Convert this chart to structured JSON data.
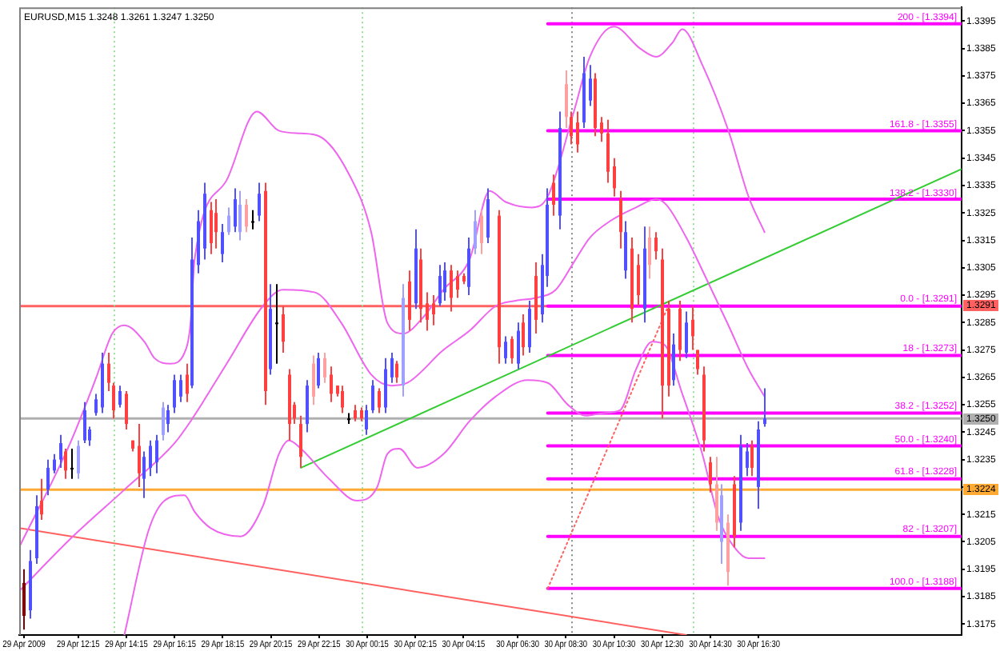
{
  "chart_data": {
    "type": "candlestick",
    "title": "EURUSD,M15 1.3248 1.3261 1.3247 1.3250",
    "x": [
      "2009-04-29T10:00",
      "2009-04-29T10:15",
      "2009-04-29T10:30",
      "2009-04-29T10:45",
      "2009-04-29T11:00",
      "2009-04-29T11:15",
      "2009-04-29T11:30",
      "2009-04-29T11:45",
      "2009-04-29T12:00",
      "2009-04-29T12:15",
      "2009-04-29T12:30",
      "2009-04-29T12:45",
      "2009-04-29T13:00",
      "2009-04-29T13:15",
      "2009-04-29T13:30",
      "2009-04-29T13:45",
      "2009-04-29T14:00",
      "2009-04-29T14:15",
      "2009-04-29T14:30",
      "2009-04-29T14:45",
      "2009-04-29T15:00",
      "2009-04-29T15:15",
      "2009-04-29T15:30",
      "2009-04-29T15:45",
      "2009-04-29T16:00",
      "2009-04-29T16:15",
      "2009-04-29T16:30",
      "2009-04-29T16:45",
      "2009-04-29T17:00",
      "2009-04-29T17:15",
      "2009-04-29T17:30",
      "2009-04-29T17:45",
      "2009-04-29T18:00",
      "2009-04-29T18:15",
      "2009-04-29T18:30",
      "2009-04-29T18:45",
      "2009-04-29T19:00",
      "2009-04-29T19:15",
      "2009-04-29T19:30",
      "2009-04-29T19:45",
      "2009-04-29T20:00",
      "2009-04-29T20:15",
      "2009-04-29T20:30",
      "2009-04-29T20:45",
      "2009-04-29T21:00",
      "2009-04-29T21:15",
      "2009-04-29T21:30",
      "2009-04-29T21:45",
      "2009-04-29T22:00",
      "2009-04-29T22:15",
      "2009-04-29T22:30",
      "2009-04-29T22:45",
      "2009-04-29T23:00",
      "2009-04-29T23:15",
      "2009-04-29T23:30",
      "2009-04-29T23:45",
      "2009-04-30T00:00",
      "2009-04-30T00:15",
      "2009-04-30T00:30",
      "2009-04-30T00:45",
      "2009-04-30T01:00",
      "2009-04-30T01:15",
      "2009-04-30T01:30",
      "2009-04-30T01:45",
      "2009-04-30T02:00",
      "2009-04-30T02:15",
      "2009-04-30T02:30",
      "2009-04-30T02:45",
      "2009-04-30T03:00",
      "2009-04-30T03:15",
      "2009-04-30T03:30",
      "2009-04-30T03:45",
      "2009-04-30T04:00",
      "2009-04-30T04:15",
      "2009-04-30T04:30",
      "2009-04-30T04:45",
      "2009-04-30T05:00",
      "2009-04-30T05:15",
      "2009-04-30T05:45",
      "2009-04-30T06:00",
      "2009-04-30T06:15",
      "2009-04-30T06:30",
      "2009-04-30T06:45",
      "2009-04-30T07:00",
      "2009-04-30T07:15",
      "2009-04-30T07:30",
      "2009-04-30T07:45",
      "2009-04-30T08:00",
      "2009-04-30T08:15",
      "2009-04-30T08:30",
      "2009-04-30T08:45",
      "2009-04-30T09:00",
      "2009-04-30T09:15",
      "2009-04-30T09:30",
      "2009-04-30T09:45",
      "2009-04-30T10:00",
      "2009-04-30T10:15",
      "2009-04-30T10:30",
      "2009-04-30T10:45",
      "2009-04-30T11:00",
      "2009-04-30T11:15",
      "2009-04-30T11:30",
      "2009-04-30T11:45",
      "2009-04-30T12:00",
      "2009-04-30T12:15",
      "2009-04-30T12:30",
      "2009-04-30T12:45",
      "2009-04-30T13:00",
      "2009-04-30T13:15",
      "2009-04-30T13:30",
      "2009-04-30T13:45",
      "2009-04-30T14:00",
      "2009-04-30T14:15",
      "2009-04-30T14:30",
      "2009-04-30T14:45",
      "2009-04-30T15:00",
      "2009-04-30T15:15",
      "2009-04-30T15:30",
      "2009-04-30T15:45",
      "2009-04-30T16:00",
      "2009-04-30T16:15",
      "2009-04-30T16:30",
      "2009-04-30T16:45"
    ],
    "ohlc": [
      [
        1.319,
        1.3195,
        1.3173,
        1.3178
      ],
      [
        1.318,
        1.3202,
        1.3177,
        1.3198
      ],
      [
        1.3199,
        1.3222,
        1.3197,
        1.3218
      ],
      [
        1.322,
        1.3228,
        1.3213,
        1.3215
      ],
      [
        1.3224,
        1.3235,
        1.3222,
        1.3232
      ],
      [
        1.3231,
        1.3237,
        1.323,
        1.3235
      ],
      [
        1.3235,
        1.3244,
        1.3232,
        1.3241
      ],
      [
        1.3238,
        1.3239,
        1.3228,
        1.3231
      ],
      [
        1.3232,
        1.3239,
        1.3228,
        1.3232
      ],
      [
        1.323,
        1.3242,
        1.3228,
        1.324
      ],
      [
        1.3242,
        1.3256,
        1.3241,
        1.3253
      ],
      [
        1.3242,
        1.3247,
        1.324,
        1.3246
      ],
      [
        1.3252,
        1.3259,
        1.3251,
        1.3257
      ],
      [
        1.3254,
        1.3274,
        1.3252,
        1.327
      ],
      [
        1.327,
        1.3274,
        1.326,
        1.3263
      ],
      [
        1.3262,
        1.3263,
        1.325,
        1.3253
      ],
      [
        1.3255,
        1.3262,
        1.3254,
        1.326
      ],
      [
        1.3259,
        1.326,
        1.3246,
        1.3248
      ],
      [
        1.3242,
        1.3242,
        1.3238,
        1.3239
      ],
      [
        1.324,
        1.3248,
        1.3225,
        1.323
      ],
      [
        1.3228,
        1.3238,
        1.3221,
        1.3236
      ],
      [
        1.3232,
        1.3242,
        1.3229,
        1.324
      ],
      [
        1.3234,
        1.3244,
        1.323,
        1.3242
      ],
      [
        1.3244,
        1.3256,
        1.3242,
        1.3254
      ],
      [
        1.3248,
        1.3255,
        1.3245,
        1.3253
      ],
      [
        1.3254,
        1.3266,
        1.3252,
        1.3264
      ],
      [
        1.3258,
        1.3266,
        1.3256,
        1.3264
      ],
      [
        1.3266,
        1.327,
        1.3256,
        1.3259
      ],
      [
        1.3262,
        1.3316,
        1.3261,
        1.3308
      ],
      [
        1.3306,
        1.3326,
        1.3303,
        1.3322
      ],
      [
        1.3312,
        1.3336,
        1.3308,
        1.3332
      ],
      [
        1.3326,
        1.3329,
        1.331,
        1.3314
      ],
      [
        1.3325,
        1.333,
        1.3312,
        1.3318
      ],
      [
        1.331,
        1.3321,
        1.3307,
        1.3318
      ],
      [
        1.3318,
        1.3327,
        1.3317,
        1.3324
      ],
      [
        1.332,
        1.3334,
        1.3318,
        1.333
      ],
      [
        1.3318,
        1.3333,
        1.3315,
        1.3328
      ],
      [
        1.3328,
        1.333,
        1.3318,
        1.332
      ],
      [
        1.3322,
        1.3326,
        1.3319,
        1.3322
      ],
      [
        1.3324,
        1.3336,
        1.3322,
        1.3332
      ],
      [
        1.3333,
        1.3336,
        1.3255,
        1.326
      ],
      [
        1.3268,
        1.3299,
        1.3266,
        1.329
      ],
      [
        1.3285,
        1.3299,
        1.327,
        1.3285
      ],
      [
        1.3288,
        1.3291,
        1.3274,
        1.3278
      ],
      [
        1.3266,
        1.3268,
        1.3242,
        1.3248
      ],
      [
        1.3255,
        1.3256,
        1.3248,
        1.325
      ],
      [
        1.3248,
        1.3251,
        1.3232,
        1.3236
      ],
      [
        1.3248,
        1.3264,
        1.3245,
        1.3262
      ],
      [
        1.327,
        1.3273,
        1.3255,
        1.3258
      ],
      [
        1.3262,
        1.3274,
        1.3261,
        1.3272
      ],
      [
        1.3272,
        1.3274,
        1.3263,
        1.3265
      ],
      [
        1.3266,
        1.3269,
        1.3256,
        1.3259
      ],
      [
        1.3262,
        1.3262,
        1.3258,
        1.3259
      ],
      [
        1.326,
        1.3262,
        1.3252,
        1.3254
      ],
      [
        1.325,
        1.3252,
        1.3248,
        1.325
      ],
      [
        1.3253,
        1.3255,
        1.3249,
        1.325
      ],
      [
        1.3253,
        1.3254,
        1.3249,
        1.325
      ],
      [
        1.3246,
        1.3255,
        1.3244,
        1.3253
      ],
      [
        1.3253,
        1.3264,
        1.3252,
        1.3262
      ],
      [
        1.326,
        1.3261,
        1.3252,
        1.3254
      ],
      [
        1.3254,
        1.3272,
        1.3252,
        1.3268
      ],
      [
        1.3265,
        1.3274,
        1.3263,
        1.3272
      ],
      [
        1.327,
        1.3271,
        1.3263,
        1.3265
      ],
      [
        1.3262,
        1.3299,
        1.3258,
        1.3294
      ],
      [
        1.33,
        1.3304,
        1.3282,
        1.3286
      ],
      [
        1.3292,
        1.3319,
        1.329,
        1.3312
      ],
      [
        1.3308,
        1.3312,
        1.3285,
        1.329
      ],
      [
        1.3292,
        1.3296,
        1.3282,
        1.3286
      ],
      [
        1.3292,
        1.3295,
        1.3284,
        1.3288
      ],
      [
        1.3292,
        1.3306,
        1.3291,
        1.3302
      ],
      [
        1.3296,
        1.3307,
        1.3293,
        1.3304
      ],
      [
        1.3304,
        1.3306,
        1.3289,
        1.3294
      ],
      [
        1.3302,
        1.3304,
        1.3294,
        1.3297
      ],
      [
        1.3302,
        1.3303,
        1.3299,
        1.33
      ],
      [
        1.3298,
        1.3316,
        1.3295,
        1.3312
      ],
      [
        1.3312,
        1.3326,
        1.331,
        1.3322
      ],
      [
        1.3324,
        1.3326,
        1.331,
        1.3314
      ],
      [
        1.3316,
        1.3334,
        1.3314,
        1.333
      ],
      [
        1.3324,
        1.3326,
        1.327,
        1.3276
      ],
      [
        1.3272,
        1.328,
        1.327,
        1.3278
      ],
      [
        1.3279,
        1.328,
        1.327,
        1.3272
      ],
      [
        1.327,
        1.3285,
        1.3268,
        1.3282
      ],
      [
        1.3285,
        1.3288,
        1.3273,
        1.3276
      ],
      [
        1.3276,
        1.3293,
        1.3274,
        1.329
      ],
      [
        1.3302,
        1.3307,
        1.3281,
        1.3286
      ],
      [
        1.3288,
        1.331,
        1.3285,
        1.3306
      ],
      [
        1.3302,
        1.3334,
        1.3298,
        1.3328
      ],
      [
        1.3336,
        1.3339,
        1.3324,
        1.3328
      ],
      [
        1.3324,
        1.3362,
        1.3319,
        1.3356
      ],
      [
        1.3372,
        1.3377,
        1.3356,
        1.336
      ],
      [
        1.336,
        1.3362,
        1.335,
        1.3353
      ],
      [
        1.3358,
        1.3362,
        1.3347,
        1.335
      ],
      [
        1.3358,
        1.3382,
        1.3356,
        1.3376
      ],
      [
        1.3366,
        1.3379,
        1.3364,
        1.3374
      ],
      [
        1.3374,
        1.3376,
        1.3353,
        1.3356
      ],
      [
        1.3358,
        1.336,
        1.3351,
        1.3354
      ],
      [
        1.3354,
        1.3359,
        1.3336,
        1.334
      ],
      [
        1.3342,
        1.3345,
        1.3331,
        1.3334
      ],
      [
        1.333,
        1.3333,
        1.3312,
        1.3318
      ],
      [
        1.3304,
        1.3322,
        1.3301,
        1.3318
      ],
      [
        1.3312,
        1.3316,
        1.3285,
        1.329
      ],
      [
        1.3306,
        1.331,
        1.3291,
        1.3295
      ],
      [
        1.329,
        1.332,
        1.3285,
        1.3312
      ],
      [
        1.3316,
        1.332,
        1.3301,
        1.3306
      ],
      [
        1.3316,
        1.3318,
        1.3308,
        1.3311
      ],
      [
        1.3308,
        1.3312,
        1.325,
        1.3262
      ],
      [
        1.329,
        1.3293,
        1.3258,
        1.3262
      ],
      [
        1.3264,
        1.3281,
        1.3262,
        1.3277
      ],
      [
        1.329,
        1.3293,
        1.3271,
        1.3275
      ],
      [
        1.3274,
        1.3289,
        1.3272,
        1.3285
      ],
      [
        1.3286,
        1.3291,
        1.3275,
        1.328
      ],
      [
        1.3275,
        1.3275,
        1.3266,
        1.3268
      ],
      [
        1.3266,
        1.3269,
        1.3238,
        1.3242
      ],
      [
        1.3234,
        1.3236,
        1.3223,
        1.3226
      ],
      [
        1.3226,
        1.3236,
        1.3209,
        1.3212
      ],
      [
        1.3205,
        1.3226,
        1.3197,
        1.3222
      ],
      [
        1.3212,
        1.3215,
        1.3189,
        1.3194
      ],
      [
        1.3226,
        1.3229,
        1.3203,
        1.3207
      ],
      [
        1.3212,
        1.3244,
        1.3209,
        1.324
      ],
      [
        1.3232,
        1.3241,
        1.3229,
        1.3238
      ],
      [
        1.324,
        1.3242,
        1.3229,
        1.3232
      ],
      [
        1.3225,
        1.3249,
        1.3217,
        1.3246
      ],
      [
        1.3248,
        1.3261,
        1.3247,
        1.325
      ]
    ],
    "colors": [
      "#800000",
      "#5050ff",
      "#5050ff",
      "#ff4040",
      "#5050ff",
      "#5050ff",
      "#5050ff",
      "#ff4040",
      "#000000",
      "#a0a0ff",
      "#5050ff",
      "#5050ff",
      "#5050ff",
      "#5050ff",
      "#ff4040",
      "#ff4040",
      "#5050ff",
      "#ff4040",
      "#ff4040",
      "#ff4040",
      "#5050ff",
      "#5050ff",
      "#5050ff",
      "#a0a0ff",
      "#5050ff",
      "#5050ff",
      "#5050ff",
      "#ff4040",
      "#5050ff",
      "#5050ff",
      "#5050ff",
      "#ff4040",
      "#ff4040",
      "#5050ff",
      "#a0a0ff",
      "#5050ff",
      "#a0a0ff",
      "#ffa0a0",
      "#000000",
      "#5050ff",
      "#ff4040",
      "#5050ff",
      "#000000",
      "#ff4040",
      "#ff4040",
      "#ff4040",
      "#ff4040",
      "#5050ff",
      "#ffa0a0",
      "#5050ff",
      "#ffa0a0",
      "#ff4040",
      "#ff4040",
      "#ff4040",
      "#000000",
      "#ff4040",
      "#ff4040",
      "#5050ff",
      "#5050ff",
      "#ff4040",
      "#5050ff",
      "#5050ff",
      "#ff4040",
      "#a0a0ff",
      "#ff4040",
      "#5050ff",
      "#ff4040",
      "#ff4040",
      "#ff4040",
      "#5050ff",
      "#5050ff",
      "#ff4040",
      "#ff4040",
      "#ff4040",
      "#5050ff",
      "#a0a0ff",
      "#ffa0a0",
      "#5050ff",
      "#ff4040",
      "#5050ff",
      "#ff4040",
      "#5050ff",
      "#ff4040",
      "#5050ff",
      "#ff4040",
      "#5050ff",
      "#5050ff",
      "#ff4040",
      "#5050ff",
      "#ffa0a0",
      "#ff4040",
      "#ff4040",
      "#5050ff",
      "#5050ff",
      "#ff4040",
      "#ff4040",
      "#ff4040",
      "#ff4040",
      "#ff4040",
      "#5050ff",
      "#ff4040",
      "#ff4040",
      "#5050ff",
      "#ffa0a0",
      "#ff4040",
      "#ff4040",
      "#ff4040",
      "#5050ff",
      "#ff4040",
      "#5050ff",
      "#ff4040",
      "#ff4040",
      "#ff4040",
      "#ff4040",
      "#ffa0a0",
      "#a0a0ff",
      "#ffa0a0",
      "#ff4040",
      "#5050ff",
      "#5050ff",
      "#ff4040",
      "#5050ff",
      "#5050ff"
    ],
    "xlim": [
      "2009-04-29T09:48",
      "2009-05-01T00:56"
    ],
    "xticks": [
      {
        "value": "2009-04-29T10:00",
        "label": "29 Apr 2009"
      },
      {
        "value": "2009-04-29T12:15",
        "label": "29 Apr 12:15"
      },
      {
        "value": "2009-04-29T14:15",
        "label": "29 Apr 14:15"
      },
      {
        "value": "2009-04-29T16:15",
        "label": "29 Apr 16:15"
      },
      {
        "value": "2009-04-29T18:15",
        "label": "29 Apr 18:15"
      },
      {
        "value": "2009-04-29T20:15",
        "label": "29 Apr 20:15"
      },
      {
        "value": "2009-04-29T22:15",
        "label": "29 Apr 22:15"
      },
      {
        "value": "2009-04-30T00:15",
        "label": "30 Apr 00:15"
      },
      {
        "value": "2009-04-30T02:15",
        "label": "30 Apr 02:15"
      },
      {
        "value": "2009-04-30T04:15",
        "label": "30 Apr 04:15"
      },
      {
        "value": "2009-04-30T06:30",
        "label": "30 Apr 06:30"
      },
      {
        "value": "2009-04-30T08:30",
        "label": "30 Apr 08:30"
      },
      {
        "value": "2009-04-30T10:30",
        "label": "30 Apr 10:30"
      },
      {
        "value": "2009-04-30T12:30",
        "label": "30 Apr 12:30"
      },
      {
        "value": "2009-04-30T14:30",
        "label": "30 Apr 14:30"
      },
      {
        "value": "2009-04-30T16:30",
        "label": "30 Apr 16:30"
      }
    ],
    "ylim": [
      1.3171,
      1.34
    ],
    "yticks": [
      1.3175,
      1.3185,
      1.3195,
      1.3205,
      1.3215,
      {
        "value": 1.3225,
        "label": null
      },
      1.3235,
      1.3245,
      1.3255,
      1.3265,
      1.3275,
      1.3285,
      1.3295,
      1.3305,
      1.3315,
      1.3325,
      1.3335,
      1.3345,
      1.3355,
      1.3365,
      1.3375,
      1.3385,
      1.3395
    ],
    "series": [
      {
        "type": "line",
        "color": "#ee66ee",
        "x": [
          "2009-04-29T09:48",
          "2009-04-29T11:55",
          "2009-04-29T13:00",
          "2009-04-29T13:40",
          "2009-04-29T14:10",
          "2009-04-29T15:00",
          "2009-04-29T15:25",
          "2009-04-29T16:05",
          "2009-04-29T16:40",
          "2009-04-29T16:55",
          "2009-04-29T17:05",
          "2009-04-29T18:25",
          "2009-04-29T19:40",
          "2009-04-29T20:35",
          "2009-04-29T21:30",
          "2009-04-29T22:15",
          "2009-04-29T23:30",
          "2009-04-30T00:25",
          "2009-04-30T01:05",
          "2009-04-30T01:45",
          "2009-04-30T02:35",
          "2009-04-30T03:25",
          "2009-04-30T04:30",
          "2009-04-30T05:20",
          "2009-04-30T06:00",
          "2009-04-30T07:05",
          "2009-04-30T07:45",
          "2009-04-30T08:50",
          "2009-04-30T09:30",
          "2009-04-30T10:30",
          "2009-04-30T11:35",
          "2009-04-30T12:15",
          "2009-04-30T12:55",
          "2009-04-30T13:20",
          "2009-04-30T14:10",
          "2009-04-30T15:15",
          "2009-04-30T16:05",
          "2009-04-30T16:45"
        ],
        "values": [
          1.3203,
          1.3241,
          1.3265,
          1.3281,
          1.3284,
          1.3278,
          1.3272,
          1.327,
          1.3274,
          1.3285,
          1.3308,
          1.3337,
          1.3362,
          1.3355,
          1.3354,
          1.3353,
          1.3339,
          1.3318,
          1.3285,
          1.3281,
          1.3287,
          1.3297,
          1.3308,
          1.3333,
          1.3329,
          1.3327,
          1.3331,
          1.3362,
          1.3382,
          1.3393,
          1.3385,
          1.3382,
          1.3387,
          1.3392,
          1.3379,
          1.3355,
          1.3331,
          1.3318
        ]
      },
      {
        "type": "line",
        "color": "#ee66ee",
        "x": [
          "2009-04-29T09:48",
          "2009-04-29T11:55",
          "2009-04-29T14:10",
          "2009-04-29T16:15",
          "2009-04-29T16:55",
          "2009-04-29T18:25",
          "2009-04-29T19:55",
          "2009-04-29T20:45",
          "2009-04-29T22:05",
          "2009-04-29T23:10",
          "2009-04-30T00:25",
          "2009-04-30T01:15",
          "2009-04-30T01:55",
          "2009-04-30T03:25",
          "2009-04-30T04:30",
          "2009-04-30T05:35",
          "2009-04-30T06:25",
          "2009-04-30T07:15",
          "2009-04-30T08:05",
          "2009-04-30T08:50",
          "2009-04-30T09:30",
          "2009-04-30T10:20",
          "2009-04-30T11:25",
          "2009-04-30T12:15",
          "2009-04-30T12:40",
          "2009-04-30T13:30",
          "2009-04-30T14:20",
          "2009-04-30T15:15",
          "2009-04-30T16:05",
          "2009-04-30T16:45"
        ],
        "values": [
          1.3187,
          1.3206,
          1.3224,
          1.3241,
          1.3249,
          1.327,
          1.3291,
          1.3297,
          1.3296,
          1.3285,
          1.3266,
          1.3262,
          1.3263,
          1.3275,
          1.3282,
          1.3291,
          1.3293,
          1.3294,
          1.3297,
          1.3307,
          1.3316,
          1.3322,
          1.3327,
          1.333,
          1.3328,
          1.3316,
          1.3301,
          1.3284,
          1.3268,
          1.3258
        ]
      },
      {
        "type": "line",
        "color": "#ee66ee",
        "x": [
          "2009-04-29T14:10",
          "2009-04-29T15:10",
          "2009-04-29T15:50",
          "2009-04-29T16:40",
          "2009-04-29T17:05",
          "2009-04-29T17:45",
          "2009-04-29T19:00",
          "2009-04-29T19:55",
          "2009-04-29T20:35",
          "2009-04-29T21:00",
          "2009-04-29T21:30",
          "2009-04-29T22:40",
          "2009-04-29T23:50",
          "2009-04-30T00:40",
          "2009-04-30T01:05",
          "2009-04-30T01:35",
          "2009-04-30T02:20",
          "2009-04-30T03:25",
          "2009-04-30T04:30",
          "2009-04-30T05:35",
          "2009-04-30T06:55",
          "2009-04-30T07:45",
          "2009-04-30T08:35",
          "2009-04-30T09:20",
          "2009-04-30T10:05",
          "2009-04-30T10:45",
          "2009-04-30T11:25",
          "2009-04-30T12:05",
          "2009-04-30T12:35",
          "2009-04-30T13:20",
          "2009-04-30T14:10",
          "2009-04-30T14:50",
          "2009-04-30T15:30",
          "2009-04-30T16:05",
          "2009-04-30T16:45"
        ],
        "values": [
          1.3171,
          1.3209,
          1.322,
          1.3222,
          1.3216,
          1.321,
          1.3207,
          1.3218,
          1.3237,
          1.3242,
          1.3239,
          1.3228,
          1.322,
          1.3225,
          1.3237,
          1.3239,
          1.3232,
          1.3237,
          1.3249,
          1.3258,
          1.3264,
          1.3263,
          1.3255,
          1.3251,
          1.3252,
          1.3253,
          1.3268,
          1.3278,
          1.3277,
          1.3259,
          1.3237,
          1.3214,
          1.3203,
          1.3199,
          1.3199
        ]
      },
      {
        "type": "line",
        "color": "#33cc33",
        "x": [
          "2009-04-29T21:30",
          "2009-05-01T00:56"
        ],
        "values": [
          1.3232,
          1.3341
        ]
      },
      {
        "type": "line",
        "color": "#ff6060",
        "x": [
          "2009-04-29T09:48",
          "2009-04-30T13:30"
        ],
        "values": [
          1.321,
          1.3171
        ]
      },
      {
        "type": "line",
        "color": "#ff6060",
        "line_style": "dotted",
        "x": [
          "2009-04-30T07:45",
          "2009-04-30T12:45"
        ],
        "values": [
          1.3188,
          1.3291
        ]
      },
      {
        "type": "line",
        "name": "200 - [1.3394]",
        "color": "#ff00ff",
        "x": [
          "2009-04-30T07:45",
          "2009-05-01T00:56"
        ],
        "values": [
          1.3394,
          1.3394
        ]
      },
      {
        "type": "line",
        "name": "161.8 - [1.3355]",
        "color": "#ff00ff",
        "x": [
          "2009-04-30T07:45",
          "2009-05-01T00:56"
        ],
        "values": [
          1.3355,
          1.3355
        ]
      },
      {
        "type": "line",
        "name": "138.2 - [1.3330]",
        "color": "#ff00ff",
        "x": [
          "2009-04-30T07:45",
          "2009-05-01T00:56"
        ],
        "values": [
          1.333,
          1.333
        ]
      },
      {
        "type": "line",
        "name": "0.0 - [1.3291]",
        "color": "#ff00ff",
        "x": [
          "2009-04-30T07:45",
          "2009-05-01T00:56"
        ],
        "values": [
          1.3291,
          1.3291
        ]
      },
      {
        "type": "line",
        "name": "18 - [1.3273]",
        "color": "#ff00ff",
        "x": [
          "2009-04-30T07:45",
          "2009-05-01T00:56"
        ],
        "values": [
          1.3273,
          1.3273
        ]
      },
      {
        "type": "line",
        "name": "38.2 - [1.3252]",
        "color": "#ff00ff",
        "x": [
          "2009-04-30T07:45",
          "2009-05-01T00:56"
        ],
        "values": [
          1.3252,
          1.3252
        ]
      },
      {
        "type": "line",
        "name": "50.0 - [1.3240]",
        "color": "#ff00ff",
        "x": [
          "2009-04-30T07:45",
          "2009-05-01T00:56"
        ],
        "values": [
          1.324,
          1.324
        ]
      },
      {
        "type": "line",
        "name": "61.8 - [1.3228]",
        "color": "#ff00ff",
        "x": [
          "2009-04-30T07:45",
          "2009-05-01T00:56"
        ],
        "values": [
          1.3228,
          1.3228
        ]
      },
      {
        "type": "line",
        "name": "82 - [1.3207]",
        "color": "#ff00ff",
        "x": [
          "2009-04-30T07:45",
          "2009-05-01T00:56"
        ],
        "values": [
          1.3207,
          1.3207
        ]
      },
      {
        "type": "line",
        "name": "100.0 - [1.3188]",
        "color": "#ff00ff",
        "x": [
          "2009-04-30T07:45",
          "2009-05-01T00:56"
        ],
        "values": [
          1.3188,
          1.3188
        ]
      }
    ],
    "ref_lines": [
      {
        "axis": "y",
        "value": 1.3291,
        "label": "1.3291",
        "color": "#ff6060"
      },
      {
        "axis": "y",
        "value": 1.325,
        "label": "1.3250",
        "color": "#b0b0b0"
      },
      {
        "axis": "y",
        "value": 1.3224,
        "label": "1.3224",
        "color": "#ffaa33"
      },
      {
        "axis": "x",
        "value": "2009-04-29T13:45",
        "color": "#99dd99",
        "line_style": "dotted"
      },
      {
        "axis": "x",
        "value": "2009-04-30T00:00",
        "color": "#99dd99",
        "line_style": "dotted"
      },
      {
        "axis": "x",
        "value": "2009-04-30T08:45",
        "color": "#888888",
        "line_style": "dotted"
      },
      {
        "axis": "x",
        "value": "2009-04-30T13:45",
        "color": "#99dd99",
        "line_style": "dotted"
      }
    ]
  }
}
